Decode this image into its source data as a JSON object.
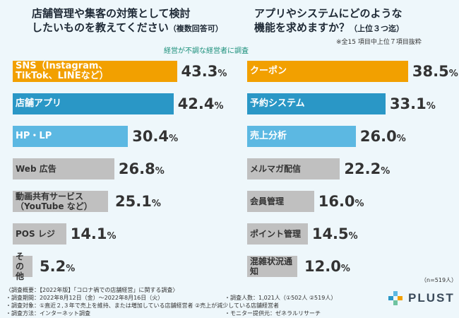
{
  "left_title": {
    "main": "店舗管理や集客の対策として検討\nしたいものを教えてください",
    "sub": "（複数回答可）"
  },
  "right_title": {
    "main": "アプリやシステムにどのような\n機能を求めますか？",
    "sub": "（上位３つ迄）"
  },
  "right_note": "※全15 項目中上位７項目抜粋",
  "badge": "経営が不調な経営者に調査",
  "n_label": "（n=519人）",
  "footer": [
    "〈調査概要：【2022年版】「コロナ禍での店舗経営」に関する調査〉",
    "・調査期間：2022年8月12日（金）〜2022年8月16日（火）",
    "・調査人数：1,021人（①502人 ②519人）",
    "・調査対象：①直近２,３年で売上を維持、または増加している店舗経営者 ②売上が減少している店舗経営者",
    "・調査方法：インターネット調査",
    "・モニター提供元：ゼネラルリサーチ"
  ],
  "brand": "PLUST",
  "colors": {
    "orange": "#f2a000",
    "blue": "#2a97c6",
    "light_blue": "#5cb8e2",
    "gray": "#c0c0c0"
  },
  "chart_data": [
    {
      "type": "bar",
      "orientation": "horizontal",
      "title": "店舗管理や集客の対策として検討したいものを教えてください（複数回答可）",
      "unit": "%",
      "xlim": [
        0,
        50
      ],
      "categories": [
        "SNS（Instagram、TikTok、LINEなど）",
        "店舗アプリ",
        "HP・LP",
        "Web 広告",
        "動画共有サービス（YouTube など）",
        "POS レジ",
        "その他"
      ],
      "labels": [
        "SNS（Instagram、\nTikTok、LINEなど）",
        "店舗アプリ",
        "HP・LP",
        "Web 広告",
        "動画共有サービス（YouTube など）",
        "POS レジ",
        "その他"
      ],
      "values": [
        43.3,
        42.4,
        30.4,
        26.8,
        25.1,
        14.1,
        5.2
      ],
      "colors": [
        "orange",
        "blue",
        "light_blue",
        "gray",
        "gray",
        "gray",
        "gray"
      ]
    },
    {
      "type": "bar",
      "orientation": "horizontal",
      "title": "アプリやシステムにどのような機能を求めますか？（上位３つ迄）",
      "unit": "%",
      "xlim": [
        0,
        50
      ],
      "categories": [
        "クーポン",
        "予約システム",
        "売上分析",
        "メルマガ配信",
        "会員管理",
        "ポイント管理",
        "混雑状況通知"
      ],
      "labels": [
        "クーポン",
        "予約システム",
        "売上分析",
        "メルマガ配信",
        "会員管理",
        "ポイント管理",
        "混雑状況通知"
      ],
      "values": [
        38.5,
        33.1,
        26.0,
        22.2,
        16.0,
        14.5,
        12.0
      ],
      "colors": [
        "orange",
        "blue",
        "light_blue",
        "gray",
        "gray",
        "gray",
        "gray"
      ]
    }
  ]
}
